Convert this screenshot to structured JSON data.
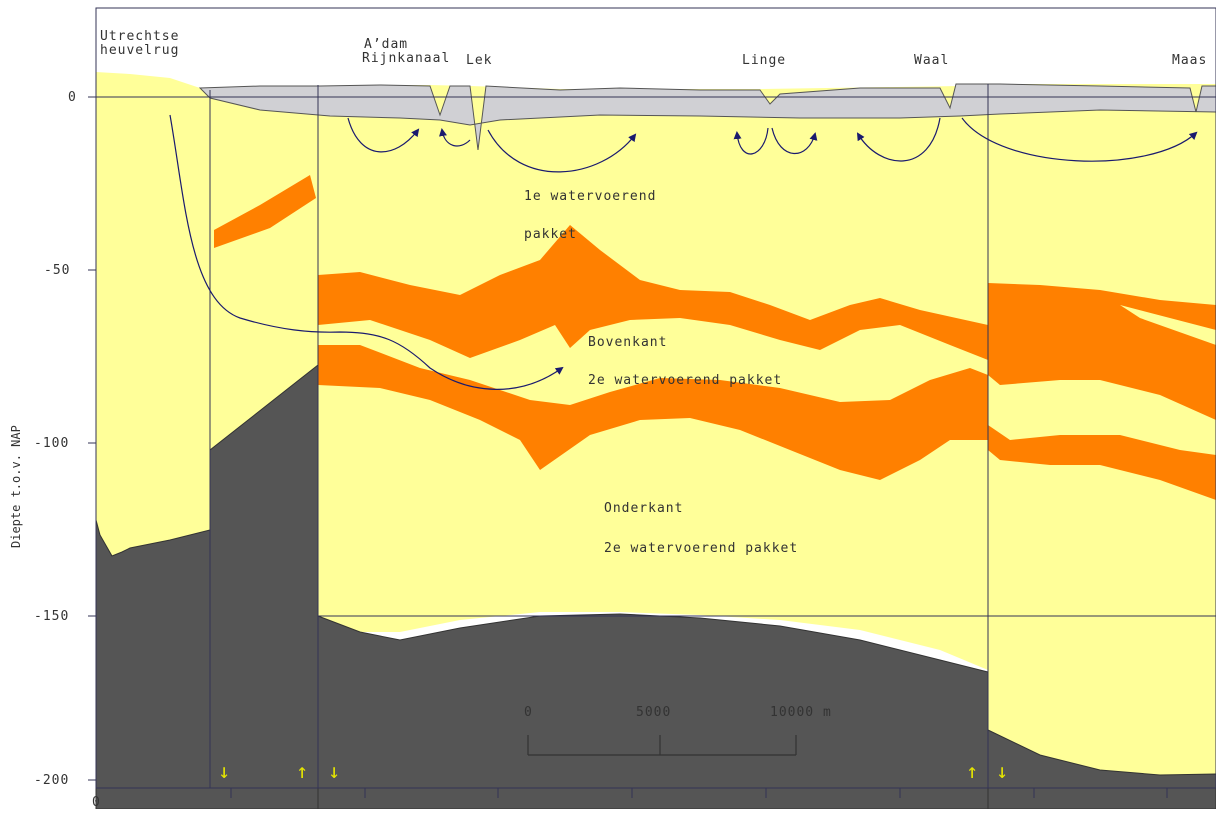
{
  "colors": {
    "sand": "#ffff99",
    "clay_layer": "#ff8000",
    "bedrock": "#555555",
    "holocene_cover": "#d0d0d4",
    "flow_arrow": "#1a1a6e",
    "fault_marker": "#e6e600",
    "frame": "#333355"
  },
  "axis": {
    "ylabel": "Diepte t.o.v. NAP",
    "y_ticks": [
      "0",
      "-50",
      "-100",
      "-150",
      "-200"
    ],
    "x_origin_label": "0"
  },
  "locations": {
    "utrechtse_line1": "Utrechtse",
    "utrechtse_line2": "heuvelrug",
    "adam_line1": "A’dam",
    "adam_line2": "Rijnkanaal",
    "lek": "Lek",
    "linge": "Linge",
    "waal": "Waal",
    "maas": "Maas"
  },
  "annotations": {
    "aquifer1_line1": "1e watervoerend",
    "aquifer1_line2": "pakket",
    "top2_line1": "Bovenkant",
    "top2_line2": "2e watervoerend pakket",
    "bottom2_line1": "Onderkant",
    "bottom2_line2": "2e watervoerend pakket"
  },
  "scale_bar": {
    "label_start": "0",
    "label_mid": "5000",
    "label_end": "10000 m"
  },
  "faults": [
    {
      "name": "fault-1",
      "symbol": "↓"
    },
    {
      "name": "fault-2",
      "symbol": "↑"
    },
    {
      "name": "fault-3",
      "symbol": "↓"
    },
    {
      "name": "fault-4",
      "symbol": "↑"
    },
    {
      "name": "fault-5",
      "symbol": "↓"
    }
  ]
}
